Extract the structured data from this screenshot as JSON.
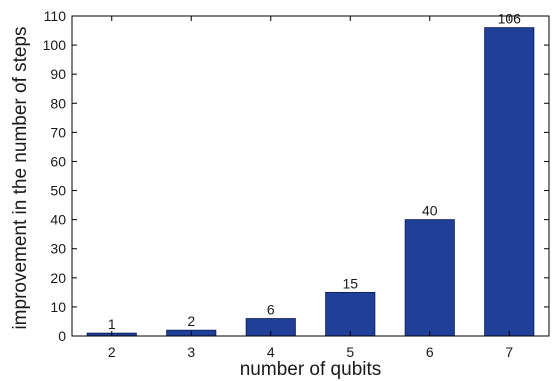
{
  "chart_data": {
    "type": "bar",
    "title": "",
    "xlabel": "number of qubits",
    "ylabel": "improvement in the number of steps",
    "categories": [
      "2",
      "3",
      "4",
      "5",
      "6",
      "7"
    ],
    "values": [
      1,
      2,
      6,
      15,
      40,
      106
    ],
    "data_labels": [
      "1",
      "2",
      "6",
      "15",
      "40",
      "106"
    ],
    "ylim": [
      0,
      110
    ],
    "yticks": [
      0,
      10,
      20,
      30,
      40,
      50,
      60,
      70,
      80,
      90,
      100,
      110
    ],
    "grid": false,
    "legend": "none",
    "bar_color": "#1f3f99",
    "bar_edge_color": "#0b1a55"
  }
}
